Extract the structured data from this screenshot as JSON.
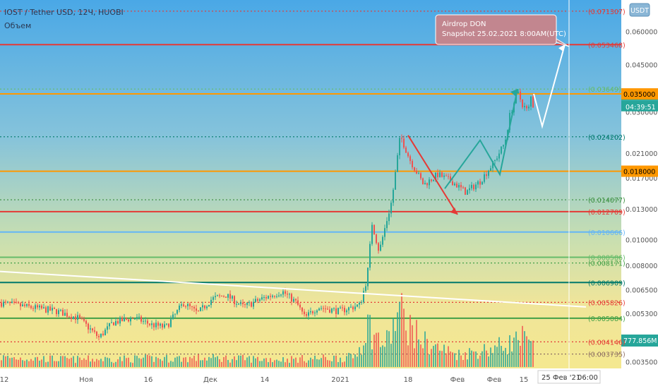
{
  "header": {
    "symbol_line": "IOST / Tether USD, 12Ч, HUOBI",
    "volume_label": "Объем"
  },
  "currency_badge": "USDT",
  "annotation": {
    "line1": "Airdrop DON",
    "line2": "Snapshot 25.02.2021  8:00AM(UTC)"
  },
  "price_axis": {
    "scale": "log",
    "ticks": [
      "0.060000",
      "0.045000",
      "0.030000",
      "0.021000",
      "0.017000",
      "0.013000",
      "0.010000",
      "0.008000",
      "0.006500",
      "0.005300",
      "0.003500"
    ]
  },
  "time_axis": {
    "ticks": [
      "12",
      "Ноя",
      "16",
      "Дек",
      "14",
      "2021",
      "18",
      "Фев",
      "Фев",
      "15"
    ],
    "cursor_date": "25 Фев '21",
    "cursor_time": "06:00"
  },
  "colors": {
    "bull": "#26a69a",
    "bear": "#ef5350",
    "fib_red": "#e53935",
    "fib_orange": "#ff9800",
    "fib_blue": "#64b5f6",
    "fib_green": "#43a047",
    "fib_teal": "#00796b",
    "annotation_bg": "#c2868f"
  },
  "chart_data": {
    "type": "candlestick",
    "y_scale": "log",
    "ylim": [
      0.0033,
      0.0785
    ],
    "last_price": "0.034429",
    "countdown": "04:39:51",
    "volume_last": "777.856M",
    "fib_levels": [
      {
        "value": 0.071307,
        "label": "0.071307",
        "color": "#e53935",
        "style": "dotted"
      },
      {
        "value": 0.053468,
        "label": "0.053468",
        "color": "#e53935",
        "style": "solid"
      },
      {
        "value": 0.03649,
        "label": "0.03649",
        "color": "#66bb6a",
        "style": "dotted"
      },
      {
        "value": 0.035,
        "label": "0.035000",
        "color": "#ff9800",
        "style": "solid",
        "highlight": true
      },
      {
        "value": 0.024202,
        "label": "0.024202",
        "color": "#00796b",
        "style": "dotted"
      },
      {
        "value": 0.018,
        "label": "0.018000",
        "color": "#ff9800",
        "style": "solid",
        "highlight": true
      },
      {
        "value": 0.014077,
        "label": "0.014077",
        "color": "#388e3c",
        "style": "dotted"
      },
      {
        "value": 0.012709,
        "label": "0.012709",
        "color": "#e53935",
        "style": "solid"
      },
      {
        "value": 0.010666,
        "label": "0.010666",
        "color": "#64b5f6",
        "style": "solid"
      },
      {
        "value": 0.008586,
        "label": "0.008586",
        "color": "#66bb6a",
        "style": "solid"
      },
      {
        "value": 0.008171,
        "label": "0.008171",
        "color": "#43a047",
        "style": "dotted"
      },
      {
        "value": 0.006909,
        "label": "0.006909",
        "color": "#00796b",
        "style": "solid"
      },
      {
        "value": 0.005826,
        "label": "0.005826",
        "color": "#e53935",
        "style": "dotted"
      },
      {
        "value": 0.005084,
        "label": "0.005084",
        "color": "#43a047",
        "style": "solid"
      },
      {
        "value": 0.004146,
        "label": "0.004146",
        "color": "#e53935",
        "style": "dotted"
      },
      {
        "value": 0.003735,
        "label": "0.003735",
        "color": "#8d6e63",
        "style": "dotted"
      }
    ],
    "price_path": [
      [
        0,
        0.0058
      ],
      [
        40,
        0.0056
      ],
      [
        80,
        0.0054
      ],
      [
        110,
        0.0051
      ],
      [
        125,
        0.0047
      ],
      [
        140,
        0.0043
      ],
      [
        160,
        0.0049
      ],
      [
        190,
        0.0051
      ],
      [
        215,
        0.0048
      ],
      [
        235,
        0.0047
      ],
      [
        260,
        0.0058
      ],
      [
        280,
        0.0053
      ],
      [
        300,
        0.006
      ],
      [
        320,
        0.0062
      ],
      [
        345,
        0.0056
      ],
      [
        370,
        0.006
      ],
      [
        400,
        0.0064
      ],
      [
        420,
        0.0058
      ],
      [
        432,
        0.0051
      ],
      [
        450,
        0.0056
      ],
      [
        480,
        0.0054
      ],
      [
        510,
        0.0057
      ],
      [
        520,
        0.0072
      ],
      [
        527,
        0.0115
      ],
      [
        537,
        0.009
      ],
      [
        545,
        0.011
      ],
      [
        555,
        0.014
      ],
      [
        567,
        0.0245
      ],
      [
        580,
        0.02
      ],
      [
        600,
        0.016
      ],
      [
        620,
        0.0175
      ],
      [
        640,
        0.0165
      ],
      [
        660,
        0.015
      ],
      [
        680,
        0.0165
      ],
      [
        700,
        0.0195
      ],
      [
        715,
        0.023
      ],
      [
        722,
        0.029
      ],
      [
        733,
        0.0355
      ],
      [
        740,
        0.032
      ],
      [
        748,
        0.03
      ],
      [
        752,
        0.034
      ],
      [
        756,
        0.031
      ]
    ],
    "volume_path": [
      [
        0,
        0.15
      ],
      [
        100,
        0.12
      ],
      [
        200,
        0.13
      ],
      [
        300,
        0.14
      ],
      [
        400,
        0.12
      ],
      [
        500,
        0.15
      ],
      [
        520,
        0.7
      ],
      [
        530,
        0.5
      ],
      [
        545,
        0.35
      ],
      [
        565,
        0.9
      ],
      [
        600,
        0.4
      ],
      [
        650,
        0.2
      ],
      [
        700,
        0.3
      ],
      [
        740,
        0.45
      ],
      [
        756,
        0.3
      ]
    ],
    "trend_lines": [
      {
        "color": "#e53935",
        "points": [
          [
            578,
            0.0245
          ],
          [
            648,
            0.0124
          ]
        ]
      },
      {
        "color": "#26a69a",
        "points": [
          [
            630,
            0.0155
          ],
          [
            680,
            0.0235
          ],
          [
            708,
            0.0175
          ],
          [
            733,
            0.0365
          ]
        ]
      },
      {
        "color": "#ffffff",
        "points": [
          [
            756,
            0.035
          ],
          [
            768,
            0.0265
          ],
          [
            800,
            0.0535
          ]
        ]
      },
      {
        "color": "#ffffff",
        "points": [
          [
            0,
            0.0076
          ],
          [
            830,
            0.0056
          ]
        ]
      }
    ]
  }
}
